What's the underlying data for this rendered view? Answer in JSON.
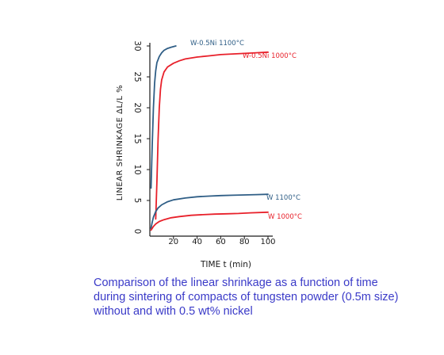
{
  "chart_data": {
    "type": "line",
    "title": "",
    "xlabel": "TIME  t  (min)",
    "ylabel": "LINEAR SHRINKAGE  ΔL/L %",
    "xlim": [
      0,
      100
    ],
    "ylim": [
      0,
      30
    ],
    "x_ticks": [
      20,
      40,
      60,
      80,
      100
    ],
    "x_tick_labels": [
      "20",
      "40",
      "60",
      "80",
      "100"
    ],
    "y_ticks": [
      0,
      5,
      10,
      15,
      20,
      25,
      30
    ],
    "y_tick_labels": [
      "0",
      "5",
      "10",
      "15",
      "20",
      "25",
      "30"
    ],
    "grid": false,
    "series": [
      {
        "name": "W-0.5Ni 1100°C",
        "color": "#2f5e86",
        "x": [
          1,
          2,
          3,
          4,
          5,
          6,
          8,
          10,
          12,
          15,
          18,
          22
        ],
        "y": [
          7,
          14,
          20,
          24,
          26,
          27.3,
          28.3,
          28.9,
          29.3,
          29.6,
          29.8,
          30
        ]
      },
      {
        "name": "W-0.5Ni 1000°C",
        "color": "#e8202a",
        "x": [
          5,
          6,
          7,
          8,
          9,
          10,
          12,
          15,
          20,
          25,
          30,
          40,
          50,
          60,
          70,
          80,
          90,
          100
        ],
        "y": [
          2,
          8,
          15,
          20,
          23,
          24.5,
          25.8,
          26.6,
          27.2,
          27.6,
          27.9,
          28.2,
          28.4,
          28.6,
          28.7,
          28.8,
          28.9,
          29
        ]
      },
      {
        "name": "W 1100°C",
        "color": "#2f5e86",
        "x": [
          1,
          2,
          3,
          5,
          7,
          10,
          15,
          20,
          30,
          40,
          50,
          60,
          70,
          80,
          90,
          100
        ],
        "y": [
          0.5,
          1.5,
          2.3,
          3.2,
          3.8,
          4.3,
          4.8,
          5.1,
          5.4,
          5.6,
          5.7,
          5.8,
          5.85,
          5.9,
          5.95,
          6
        ]
      },
      {
        "name": "W 1000°C",
        "color": "#e8202a",
        "x": [
          1,
          2,
          3,
          5,
          8,
          12,
          18,
          25,
          35,
          45,
          55,
          65,
          75,
          85,
          100
        ],
        "y": [
          0.2,
          0.5,
          0.8,
          1.2,
          1.6,
          1.9,
          2.2,
          2.4,
          2.6,
          2.7,
          2.8,
          2.85,
          2.9,
          3.0,
          3.1
        ]
      }
    ],
    "series_labels": [
      "W-0.5Ni 1100°C",
      "W-0.5Ni 1000°C",
      "W 1100°C",
      "W 1000°C"
    ]
  },
  "caption": {
    "line1": "Comparison of the linear shrinkage as a function of time",
    "line2": "during sintering of compacts of tungsten powder (0.5m size)",
    "line3": "without and with 0.5 wt% nickel"
  }
}
